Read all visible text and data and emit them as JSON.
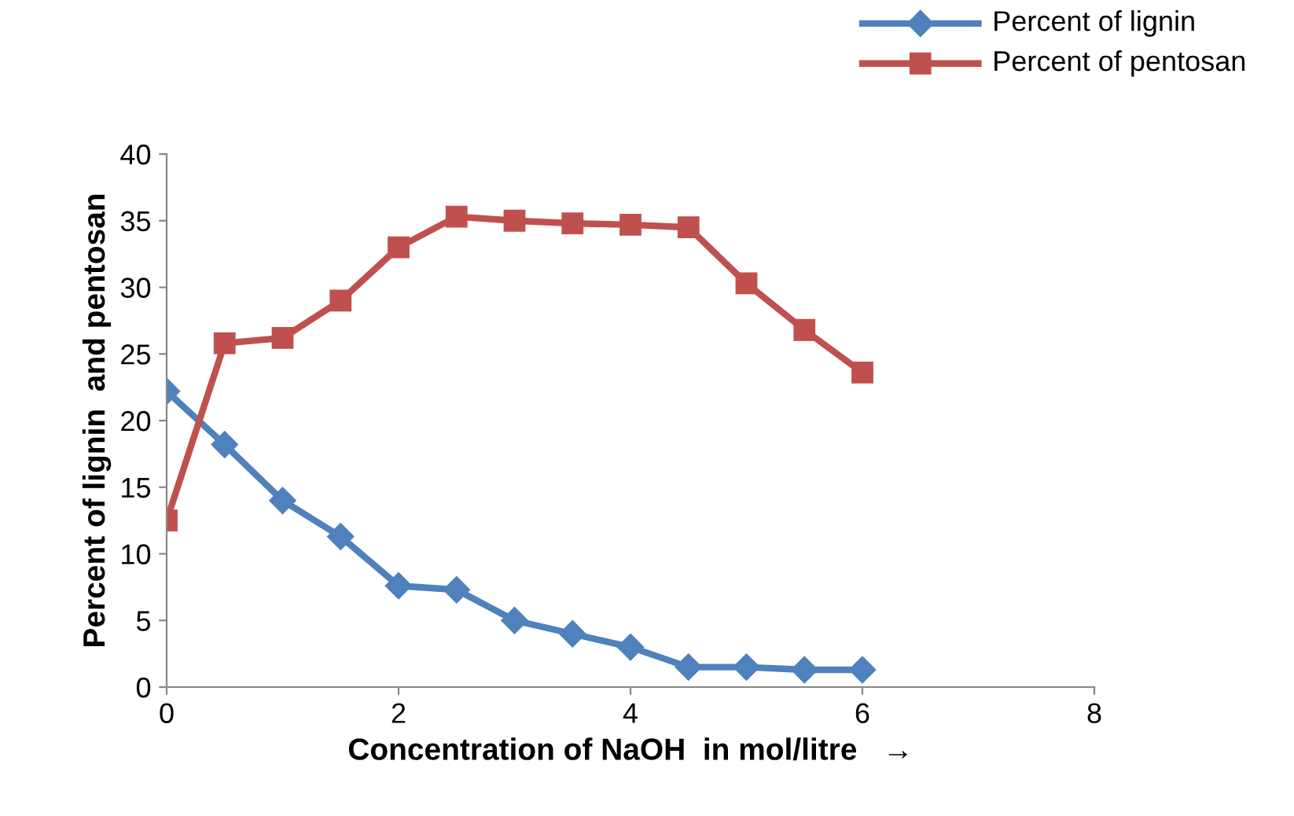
{
  "chart_data": {
    "type": "line",
    "xlabel": "Concentration of NaOH  in mol/litre   →",
    "ylabel": "Percent of lignin  and pentosan",
    "x": [
      0,
      0.5,
      1,
      1.5,
      2,
      2.5,
      3,
      3.5,
      4,
      4.5,
      5,
      5.5,
      6
    ],
    "series": [
      {
        "name": "Percent of lignin",
        "color": "#4f81bd",
        "marker": "diamond",
        "values": [
          22.2,
          18.2,
          14,
          11.3,
          7.6,
          7.3,
          5,
          4,
          3,
          1.5,
          1.5,
          1.3,
          1.3
        ]
      },
      {
        "name": "Percent of pentosan",
        "color": "#c0504d",
        "marker": "square",
        "values": [
          12.5,
          25.8,
          26.2,
          29,
          33,
          35.3,
          35,
          34.8,
          34.7,
          34.5,
          30.3,
          26.8,
          23.6
        ]
      }
    ],
    "xlim": [
      0,
      8
    ],
    "xticks": [
      0,
      2,
      4,
      6,
      8
    ],
    "ylim": [
      0,
      40
    ],
    "yticks": [
      0,
      5,
      10,
      15,
      20,
      25,
      30,
      35,
      40
    ],
    "grid": false,
    "legend": "top right",
    "line_style": "solid"
  }
}
